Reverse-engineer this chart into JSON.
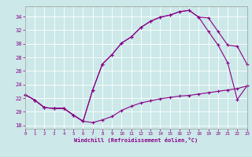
{
  "bg_color": "#cce8e8",
  "line_color": "#880088",
  "grid_color": "#ffffff",
  "xlabel": "Windchill (Refroidissement éolien,°C)",
  "x_ticks": [
    0,
    1,
    2,
    3,
    4,
    5,
    6,
    7,
    8,
    9,
    10,
    11,
    12,
    13,
    14,
    15,
    16,
    17,
    18,
    19,
    20,
    21,
    22,
    23
  ],
  "y_ticks": [
    18,
    20,
    22,
    24,
    26,
    28,
    30,
    32,
    34
  ],
  "xlim": [
    0,
    23
  ],
  "ylim": [
    17.5,
    35.5
  ],
  "curve_a_x": [
    0,
    1,
    2,
    3,
    4,
    5,
    6,
    7,
    8,
    9,
    10,
    11,
    12,
    13,
    14,
    15,
    16,
    17,
    18,
    19,
    20,
    21,
    22,
    23
  ],
  "curve_a_y": [
    22.5,
    21.7,
    20.6,
    20.5,
    20.5,
    19.5,
    18.6,
    18.4,
    18.8,
    19.3,
    20.2,
    20.8,
    21.3,
    21.6,
    21.9,
    22.1,
    22.3,
    22.4,
    22.6,
    22.8,
    23.0,
    23.2,
    23.4,
    23.8
  ],
  "curve_b_x": [
    0,
    1,
    2,
    3,
    4,
    5,
    6,
    7,
    8,
    9,
    10,
    11,
    12,
    13,
    14,
    15,
    16,
    17,
    18,
    19,
    20,
    21,
    22,
    23
  ],
  "curve_b_y": [
    22.5,
    21.7,
    20.6,
    20.5,
    20.5,
    19.5,
    18.6,
    23.2,
    27.0,
    28.4,
    30.1,
    31.0,
    32.4,
    33.3,
    33.9,
    34.2,
    34.7,
    34.9,
    33.9,
    31.8,
    29.8,
    27.2,
    21.8,
    23.8
  ],
  "curve_c_x": [
    0,
    1,
    2,
    3,
    4,
    5,
    6,
    7,
    8,
    9,
    10,
    11,
    12,
    13,
    14,
    15,
    16,
    17,
    18,
    19,
    20,
    21,
    22,
    23
  ],
  "curve_c_y": [
    22.5,
    21.7,
    20.6,
    20.5,
    20.5,
    19.5,
    18.6,
    23.2,
    27.0,
    28.4,
    30.1,
    31.0,
    32.4,
    33.3,
    33.9,
    34.2,
    34.7,
    34.9,
    33.9,
    33.8,
    31.8,
    29.8,
    29.6,
    27.0
  ]
}
